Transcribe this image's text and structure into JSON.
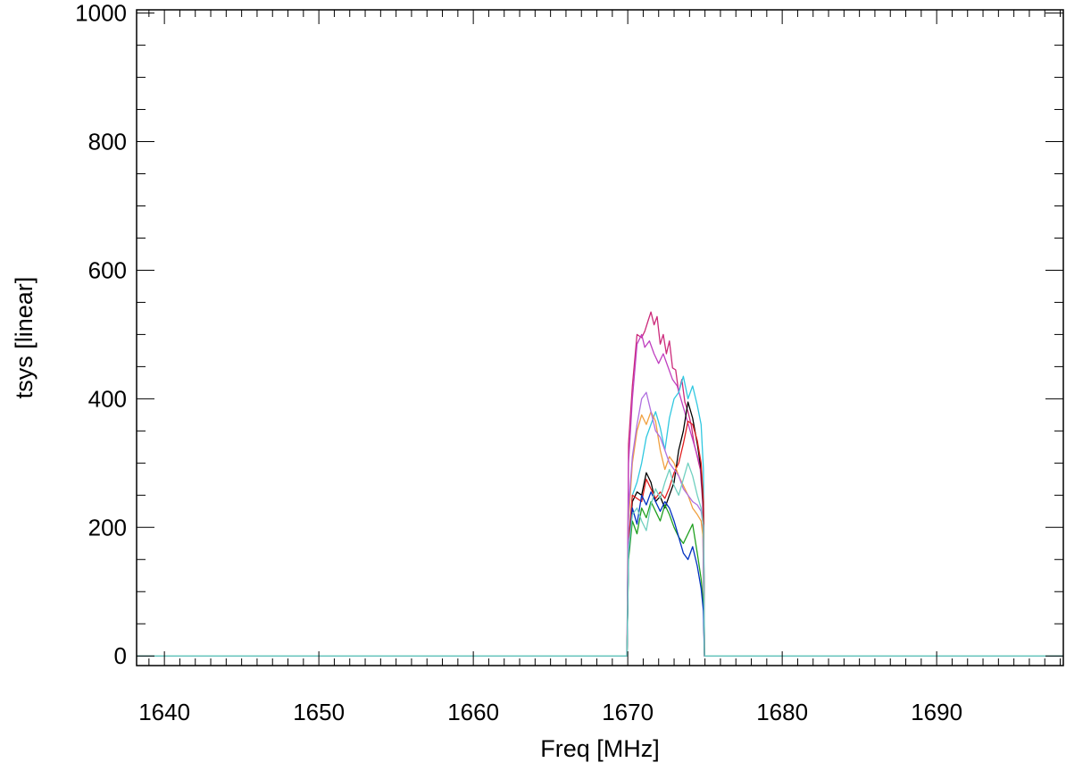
{
  "chart_data": {
    "type": "line",
    "title": "",
    "xlabel": "Freq [MHz]",
    "ylabel": "tsys [linear]",
    "xlim": [
      1638.2,
      1698.2
    ],
    "ylim": [
      -15,
      1005
    ],
    "xticks": [
      1640,
      1650,
      1660,
      1670,
      1680,
      1690
    ],
    "yticks": [
      0,
      200,
      400,
      600,
      800,
      1000
    ],
    "x_minor_step": 1,
    "y_minor_step": 50,
    "grid": false,
    "series": [
      {
        "color": "#cc2a7a",
        "x": [
          1638.2,
          1669.95,
          1670.05,
          1670.3,
          1670.6,
          1670.9,
          1671.1,
          1671.3,
          1671.5,
          1671.7,
          1671.9,
          1672.1,
          1672.3,
          1672.5,
          1672.7,
          1672.9,
          1673.1,
          1673.3,
          1673.5,
          1673.7,
          1673.9,
          1674.1,
          1674.3,
          1674.5,
          1674.7,
          1674.85,
          1674.95,
          1698.2
        ],
        "y": [
          0,
          0,
          330,
          420,
          500,
          495,
          505,
          520,
          535,
          515,
          528,
          485,
          500,
          470,
          490,
          448,
          445,
          410,
          430,
          395,
          380,
          360,
          330,
          310,
          290,
          240,
          0,
          0
        ]
      },
      {
        "color": "#c040c0",
        "x": [
          1638.2,
          1669.95,
          1670.05,
          1670.3,
          1670.6,
          1670.9,
          1671.1,
          1671.4,
          1671.7,
          1672.0,
          1672.3,
          1672.6,
          1672.9,
          1673.2,
          1673.5,
          1673.8,
          1674.1,
          1674.4,
          1674.7,
          1674.85,
          1674.95,
          1698.2
        ],
        "y": [
          0,
          0,
          300,
          400,
          485,
          500,
          480,
          490,
          470,
          455,
          470,
          450,
          430,
          420,
          395,
          370,
          345,
          320,
          295,
          250,
          0,
          0
        ]
      },
      {
        "color": "#30c8e0",
        "x": [
          1638.2,
          1669.95,
          1670.05,
          1670.3,
          1670.6,
          1670.9,
          1671.2,
          1671.5,
          1671.8,
          1672.1,
          1672.4,
          1672.7,
          1673.0,
          1673.3,
          1673.6,
          1673.9,
          1674.2,
          1674.5,
          1674.75,
          1674.9,
          1674.97,
          1698.2
        ],
        "y": [
          0,
          0,
          180,
          250,
          270,
          300,
          340,
          360,
          380,
          355,
          320,
          370,
          400,
          410,
          435,
          400,
          420,
          390,
          360,
          290,
          0,
          0
        ]
      },
      {
        "color": "#000000",
        "x": [
          1638.2,
          1669.95,
          1670.05,
          1670.3,
          1670.6,
          1670.9,
          1671.2,
          1671.5,
          1671.8,
          1672.1,
          1672.4,
          1672.7,
          1673.0,
          1673.3,
          1673.6,
          1673.9,
          1674.2,
          1674.5,
          1674.75,
          1674.9,
          1674.97,
          1698.2
        ],
        "y": [
          0,
          0,
          170,
          240,
          255,
          250,
          285,
          270,
          240,
          248,
          230,
          250,
          270,
          320,
          350,
          395,
          370,
          330,
          290,
          230,
          0,
          0
        ]
      },
      {
        "color": "#e02020",
        "x": [
          1638.2,
          1669.95,
          1670.05,
          1670.3,
          1670.6,
          1670.9,
          1671.2,
          1671.5,
          1671.8,
          1672.1,
          1672.4,
          1672.7,
          1673.0,
          1673.3,
          1673.6,
          1673.9,
          1674.2,
          1674.5,
          1674.75,
          1674.9,
          1674.97,
          1698.2
        ],
        "y": [
          0,
          0,
          175,
          250,
          245,
          240,
          275,
          260,
          245,
          255,
          245,
          262,
          285,
          300,
          330,
          365,
          360,
          335,
          300,
          240,
          0,
          0
        ]
      },
      {
        "color": "#f0a040",
        "x": [
          1638.2,
          1669.95,
          1670.05,
          1670.3,
          1670.6,
          1670.9,
          1671.2,
          1671.5,
          1671.8,
          1672.1,
          1672.4,
          1672.7,
          1673.0,
          1673.3,
          1673.6,
          1673.9,
          1674.2,
          1674.5,
          1674.75,
          1674.9,
          1674.97,
          1698.2
        ],
        "y": [
          0,
          0,
          210,
          300,
          350,
          375,
          360,
          380,
          365,
          320,
          290,
          310,
          300,
          280,
          265,
          250,
          230,
          220,
          210,
          180,
          0,
          0
        ]
      },
      {
        "color": "#b070e0",
        "x": [
          1638.2,
          1669.95,
          1670.05,
          1670.3,
          1670.6,
          1670.9,
          1671.2,
          1671.5,
          1671.8,
          1672.1,
          1672.4,
          1672.7,
          1673.0,
          1673.3,
          1673.6,
          1673.9,
          1674.2,
          1674.5,
          1674.75,
          1674.9,
          1674.97,
          1698.2
        ],
        "y": [
          0,
          0,
          230,
          310,
          360,
          400,
          410,
          380,
          350,
          340,
          320,
          300,
          290,
          280,
          260,
          250,
          240,
          235,
          225,
          200,
          0,
          0
        ]
      },
      {
        "color": "#20a020",
        "x": [
          1638.2,
          1669.95,
          1670.05,
          1670.3,
          1670.6,
          1670.9,
          1671.2,
          1671.5,
          1671.8,
          1672.1,
          1672.4,
          1672.7,
          1673.0,
          1673.3,
          1673.6,
          1673.9,
          1674.2,
          1674.5,
          1674.75,
          1674.9,
          1674.97,
          1698.2
        ],
        "y": [
          0,
          0,
          150,
          210,
          190,
          230,
          215,
          240,
          225,
          210,
          235,
          220,
          200,
          185,
          175,
          190,
          205,
          160,
          120,
          80,
          0,
          0
        ]
      },
      {
        "color": "#0030c0",
        "x": [
          1638.2,
          1669.95,
          1670.05,
          1670.3,
          1670.6,
          1670.9,
          1671.2,
          1671.5,
          1671.8,
          1672.1,
          1672.4,
          1672.7,
          1673.0,
          1673.3,
          1673.6,
          1673.9,
          1674.2,
          1674.5,
          1674.75,
          1674.9,
          1674.97,
          1698.2
        ],
        "y": [
          0,
          0,
          160,
          230,
          205,
          250,
          235,
          255,
          240,
          225,
          240,
          230,
          210,
          185,
          160,
          150,
          170,
          140,
          105,
          70,
          0,
          0
        ]
      },
      {
        "color": "#70d0c0",
        "x": [
          1638.2,
          1669.95,
          1670.05,
          1670.3,
          1670.6,
          1670.9,
          1671.2,
          1671.5,
          1671.8,
          1672.1,
          1672.4,
          1672.7,
          1673.0,
          1673.3,
          1673.6,
          1673.9,
          1674.2,
          1674.5,
          1674.75,
          1674.9,
          1674.97,
          1698.2
        ],
        "y": [
          0,
          0,
          165,
          220,
          230,
          210,
          195,
          235,
          260,
          245,
          270,
          290,
          265,
          250,
          275,
          300,
          280,
          250,
          230,
          200,
          0,
          0
        ]
      }
    ]
  }
}
